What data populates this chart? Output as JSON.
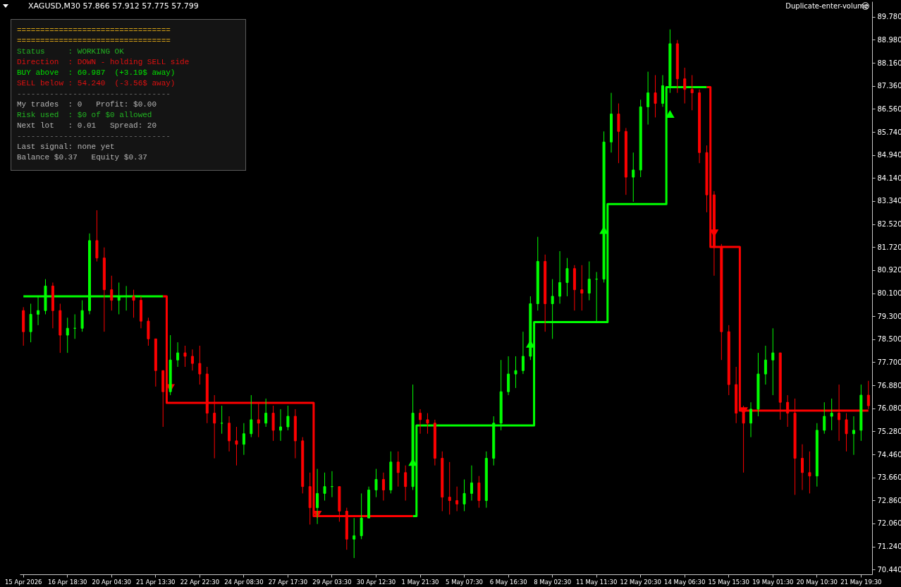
{
  "chart_data": {
    "type": "candlestick",
    "title": "XAGUSD,M30  57.866 57.912 57.775 57.799",
    "categories": [
      "15 Apr 2026",
      null,
      null,
      null,
      null,
      null,
      "16 Apr 18:30",
      null,
      null,
      null,
      null,
      null,
      "20 Apr 04:30",
      null,
      null,
      null,
      null,
      null,
      "21 Apr 13:30",
      null,
      null,
      null,
      null,
      null,
      "22 Apr 22:30",
      null,
      null,
      null,
      null,
      null,
      "24 Apr 08:30",
      null,
      null,
      null,
      null,
      null,
      "27 Apr 17:30",
      null,
      null,
      null,
      null,
      null,
      "29 Apr 03:30",
      null,
      null,
      null,
      null,
      null,
      "30 Apr 12:30",
      null,
      null,
      null,
      null,
      null,
      "1 May 21:30",
      null,
      null,
      null,
      null,
      null,
      "5 May 07:30",
      null,
      null,
      null,
      null,
      null,
      "6 May 16:30",
      null,
      null,
      null,
      null,
      null,
      "8 May 02:30",
      null,
      null,
      null,
      null,
      null,
      "11 May 11:30",
      null,
      null,
      null,
      null,
      null,
      "12 May 20:30",
      null,
      null,
      null,
      null,
      null,
      "14 May 06:30",
      null,
      null,
      null,
      null,
      null,
      "15 May 15:30",
      null,
      null,
      null,
      null,
      null,
      "19 May 01:30",
      null,
      null,
      null,
      null,
      null,
      "20 May 10:30",
      null,
      null,
      null,
      null,
      null,
      "21 May 19:30",
      null
    ],
    "ohlc": [
      [
        79.5,
        79.62,
        78.27,
        78.76
      ],
      [
        78.76,
        79.74,
        78.39,
        79.37
      ],
      [
        79.37,
        80.0,
        78.99,
        79.5
      ],
      [
        79.5,
        80.6,
        79.37,
        80.36
      ],
      [
        80.36,
        80.48,
        78.88,
        79.5
      ],
      [
        79.5,
        79.74,
        78.02,
        78.64
      ],
      [
        78.64,
        79.25,
        78.02,
        78.88
      ],
      [
        78.88,
        79.37,
        78.51,
        78.88
      ],
      [
        78.88,
        79.86,
        78.76,
        79.5
      ],
      [
        79.5,
        82.2,
        79.37,
        81.95
      ],
      [
        81.95,
        83.01,
        81.22,
        81.34
      ],
      [
        81.34,
        81.71,
        78.76,
        80.23
      ],
      [
        80.23,
        80.72,
        79.5,
        79.86
      ],
      [
        79.86,
        80.48,
        79.37,
        80.0
      ],
      [
        80.0,
        80.36,
        79.5,
        80.0
      ],
      [
        80.0,
        80.23,
        79.25,
        79.86
      ],
      [
        79.86,
        80.0,
        78.88,
        79.13
      ],
      [
        79.13,
        79.25,
        78.27,
        78.51
      ],
      [
        78.51,
        78.51,
        76.84,
        77.4
      ],
      [
        77.4,
        77.4,
        75.43,
        76.66
      ],
      [
        76.66,
        78.64,
        76.54,
        77.77
      ],
      [
        77.77,
        78.39,
        77.53,
        78.02
      ],
      [
        78.02,
        78.27,
        77.53,
        77.9
      ],
      [
        77.9,
        78.14,
        77.4,
        77.65
      ],
      [
        77.65,
        78.27,
        76.91,
        77.28
      ],
      [
        77.28,
        77.53,
        75.56,
        75.91
      ],
      [
        75.91,
        76.54,
        74.33,
        75.56
      ],
      [
        75.56,
        76.17,
        75.19,
        75.56
      ],
      [
        75.56,
        75.8,
        74.57,
        74.94
      ],
      [
        74.94,
        75.43,
        74.08,
        74.82
      ],
      [
        74.82,
        75.56,
        74.45,
        75.19
      ],
      [
        75.19,
        76.54,
        75.07,
        75.68
      ],
      [
        75.68,
        76.29,
        75.07,
        75.56
      ],
      [
        75.56,
        76.42,
        75.43,
        75.91
      ],
      [
        75.91,
        76.17,
        74.94,
        75.31
      ],
      [
        75.31,
        76.05,
        74.94,
        75.43
      ],
      [
        75.43,
        76.17,
        75.31,
        75.8
      ],
      [
        75.8,
        76.05,
        74.33,
        74.94
      ],
      [
        74.94,
        75.07,
        73.1,
        73.34
      ],
      [
        73.34,
        73.83,
        72.01,
        72.6
      ],
      [
        72.6,
        73.96,
        72.03,
        73.1
      ],
      [
        73.1,
        73.83,
        72.85,
        73.34
      ],
      [
        73.34,
        73.88,
        72.97,
        73.34
      ],
      [
        73.34,
        73.34,
        72.11,
        72.48
      ],
      [
        72.48,
        72.6,
        71.13,
        71.5
      ],
      [
        71.5,
        72.24,
        70.84,
        71.62
      ],
      [
        71.62,
        73.1,
        71.5,
        72.24
      ],
      [
        72.24,
        73.34,
        72.24,
        73.22
      ],
      [
        73.22,
        73.96,
        72.97,
        73.59
      ],
      [
        73.59,
        73.83,
        72.85,
        73.22
      ],
      [
        73.22,
        74.57,
        73.1,
        74.2
      ],
      [
        74.2,
        74.57,
        73.34,
        73.83
      ],
      [
        73.83,
        74.08,
        72.85,
        73.34
      ],
      [
        73.34,
        76.91,
        73.22,
        75.91
      ],
      [
        75.91,
        76.05,
        75.19,
        75.68
      ],
      [
        75.68,
        75.91,
        75.19,
        75.56
      ],
      [
        75.56,
        75.68,
        74.08,
        74.33
      ],
      [
        74.33,
        74.57,
        72.48,
        72.97
      ],
      [
        72.97,
        74.2,
        72.36,
        72.85
      ],
      [
        72.85,
        73.34,
        72.48,
        72.73
      ],
      [
        72.73,
        73.59,
        72.48,
        73.1
      ],
      [
        73.1,
        74.08,
        72.85,
        73.47
      ],
      [
        73.47,
        73.71,
        72.6,
        72.85
      ],
      [
        72.85,
        74.57,
        72.6,
        74.33
      ],
      [
        74.33,
        75.8,
        74.08,
        75.56
      ],
      [
        75.56,
        77.77,
        75.31,
        76.66
      ],
      [
        76.66,
        77.9,
        76.54,
        77.28
      ],
      [
        77.28,
        77.9,
        76.79,
        77.4
      ],
      [
        77.4,
        78.76,
        77.28,
        77.9
      ],
      [
        77.9,
        80.0,
        77.77,
        79.74
      ],
      [
        79.74,
        82.08,
        79.5,
        81.22
      ],
      [
        81.22,
        81.46,
        78.76,
        79.74
      ],
      [
        79.74,
        80.6,
        78.51,
        80.0
      ],
      [
        80.0,
        81.58,
        79.74,
        80.48
      ],
      [
        80.48,
        81.34,
        80.0,
        80.97
      ],
      [
        80.97,
        81.09,
        79.5,
        80.23
      ],
      [
        80.23,
        81.09,
        79.5,
        80.11
      ],
      [
        80.11,
        81.22,
        79.86,
        80.6
      ],
      [
        80.6,
        80.85,
        79.13,
        80.6
      ],
      [
        80.6,
        85.77,
        80.48,
        85.4
      ],
      [
        85.4,
        87.12,
        85.03,
        86.38
      ],
      [
        86.38,
        86.75,
        84.66,
        85.77
      ],
      [
        85.77,
        85.89,
        83.55,
        84.17
      ],
      [
        84.17,
        85.03,
        83.31,
        84.42
      ],
      [
        84.42,
        86.88,
        84.17,
        86.63
      ],
      [
        86.63,
        87.86,
        86.01,
        87.12
      ],
      [
        87.12,
        87.74,
        86.26,
        86.75
      ],
      [
        86.75,
        87.74,
        86.63,
        87.37
      ],
      [
        87.37,
        89.34,
        87.12,
        88.84
      ],
      [
        88.84,
        88.97,
        87.12,
        87.61
      ],
      [
        87.61,
        88.0,
        86.75,
        87.24
      ],
      [
        87.24,
        87.74,
        86.51,
        87.12
      ],
      [
        87.12,
        87.24,
        84.66,
        85.03
      ],
      [
        85.03,
        85.28,
        82.94,
        83.55
      ],
      [
        83.55,
        83.68,
        80.72,
        81.71
      ],
      [
        81.71,
        81.83,
        77.77,
        78.76
      ],
      [
        78.76,
        78.99,
        76.54,
        76.91
      ],
      [
        76.91,
        77.53,
        75.56,
        75.91
      ],
      [
        75.91,
        76.17,
        73.83,
        75.56
      ],
      [
        75.56,
        76.29,
        75.07,
        76.05
      ],
      [
        76.05,
        78.02,
        75.8,
        77.28
      ],
      [
        77.28,
        78.27,
        76.91,
        77.77
      ],
      [
        77.77,
        78.88,
        76.54,
        78.02
      ],
      [
        78.02,
        78.02,
        75.68,
        76.29
      ],
      [
        76.29,
        76.54,
        75.43,
        75.91
      ],
      [
        75.91,
        76.42,
        73.05,
        74.33
      ],
      [
        74.33,
        74.82,
        73.22,
        73.83
      ],
      [
        73.83,
        74.57,
        73.1,
        73.71
      ],
      [
        73.71,
        75.56,
        73.34,
        75.31
      ],
      [
        75.31,
        76.29,
        75.19,
        75.8
      ],
      [
        75.8,
        76.42,
        75.31,
        75.91
      ],
      [
        75.91,
        76.91,
        74.94,
        75.68
      ],
      [
        75.68,
        75.91,
        74.57,
        75.19
      ],
      [
        75.19,
        75.8,
        74.45,
        75.31
      ],
      [
        75.31,
        76.91,
        74.94,
        76.54
      ],
      [
        76.54,
        77.04,
        76.05,
        76.17
      ]
    ],
    "colors": [
      "#ff0000",
      "#00ff00",
      "#00ff00",
      "#00ff00",
      "#ff0000",
      "#ff0000",
      "#00ff00",
      "#00ff00",
      "#00ff00",
      "#00ff00",
      "#ff0000",
      "#ff0000",
      "#ff0000",
      "#00ff00",
      "#00ff00",
      "#ff0000",
      "#ff0000",
      "#ff0000",
      "#ff0000",
      "#ff0000",
      "#00ff00",
      "#00ff00",
      "#ff0000",
      "#ff0000",
      "#ff0000",
      "#ff0000",
      "#ff0000",
      "#00ff00",
      "#ff0000",
      "#ff0000",
      "#00ff00",
      "#00ff00",
      "#ff0000",
      "#00ff00",
      "#ff0000",
      "#00ff00",
      "#00ff00",
      "#ff0000",
      "#ff0000",
      "#ff0000",
      "#00ff00",
      "#00ff00",
      "#00ff00",
      "#ff0000",
      "#ff0000",
      "#00ff00",
      "#00ff00",
      "#00ff00",
      "#00ff00",
      "#ff0000",
      "#00ff00",
      "#ff0000",
      "#ff0000",
      "#00ff00",
      "#ff0000",
      "#ff0000",
      "#ff0000",
      "#ff0000",
      "#ff0000",
      "#ff0000",
      "#00ff00",
      "#00ff00",
      "#ff0000",
      "#00ff00",
      "#00ff00",
      "#00ff00",
      "#00ff00",
      "#00ff00",
      "#00ff00",
      "#00ff00",
      "#00ff00",
      "#ff0000",
      "#00ff00",
      "#00ff00",
      "#00ff00",
      "#ff0000",
      "#ff0000",
      "#00ff00",
      "#00ff00",
      "#00ff00",
      "#00ff00",
      "#ff0000",
      "#ff0000",
      "#00ff00",
      "#00ff00",
      "#00ff00",
      "#ff0000",
      "#00ff00",
      "#00ff00",
      "#ff0000",
      "#ff0000",
      "#ff0000",
      "#ff0000",
      "#ff0000",
      "#ff0000",
      "#ff0000",
      "#ff0000",
      "#ff0000",
      "#ff0000",
      "#00ff00",
      "#00ff00",
      "#00ff00",
      "#00ff00",
      "#ff0000",
      "#ff0000",
      "#ff0000",
      "#ff0000",
      "#ff0000",
      "#00ff00",
      "#00ff00",
      "#00ff00",
      "#ff0000",
      "#ff0000",
      "#00ff00",
      "#00ff00",
      "#ff0000"
    ],
    "series": [
      {
        "type": "step",
        "color": "#00ff00",
        "values": [
          80.0,
          80.0,
          80.0,
          80.0,
          80.0,
          80.0,
          80.0,
          80.0,
          80.0,
          80.0,
          80.0,
          80.0,
          80.0,
          80.0,
          80.0,
          80.0,
          80.0,
          80.0,
          80.0,
          80.0,
          null,
          null,
          null,
          null,
          null,
          null,
          null,
          null,
          null,
          null,
          null,
          null,
          null,
          null,
          null,
          null,
          null,
          null,
          null,
          null,
          null,
          null,
          null,
          null,
          null,
          null,
          null,
          null,
          null,
          null,
          null,
          null,
          null,
          72.31,
          75.48,
          75.48,
          75.48,
          75.48,
          75.48,
          75.48,
          75.48,
          75.48,
          75.48,
          75.48,
          75.48,
          75.48,
          75.48,
          75.48,
          75.48,
          75.48,
          79.1,
          79.1,
          79.1,
          79.1,
          79.1,
          79.1,
          79.1,
          79.1,
          79.1,
          79.1,
          83.23,
          83.23,
          83.23,
          83.23,
          83.23,
          83.23,
          83.23,
          83.23,
          87.32,
          87.32,
          87.32,
          87.32,
          87.32,
          87.32,
          null,
          null,
          null,
          null,
          null,
          null,
          null,
          null,
          null,
          null,
          null,
          null,
          null,
          null,
          null,
          null,
          null,
          null,
          null,
          null,
          null,
          null
        ]
      },
      {
        "type": "step",
        "color": "#ff0000",
        "values": [
          null,
          null,
          null,
          null,
          null,
          null,
          null,
          null,
          null,
          null,
          null,
          null,
          null,
          null,
          null,
          null,
          null,
          null,
          null,
          80.0,
          76.27,
          76.27,
          76.27,
          76.27,
          76.27,
          76.27,
          76.27,
          76.27,
          76.27,
          76.27,
          76.27,
          76.27,
          76.27,
          76.27,
          76.27,
          76.27,
          76.27,
          76.27,
          76.27,
          76.27,
          72.31,
          72.31,
          72.31,
          72.31,
          72.31,
          72.31,
          72.31,
          72.31,
          72.31,
          72.31,
          72.31,
          72.31,
          72.31,
          72.31,
          null,
          null,
          null,
          null,
          null,
          null,
          null,
          null,
          null,
          null,
          null,
          null,
          null,
          null,
          null,
          null,
          null,
          null,
          null,
          null,
          null,
          null,
          null,
          null,
          null,
          null,
          null,
          null,
          null,
          null,
          null,
          null,
          null,
          null,
          null,
          null,
          null,
          null,
          null,
          87.32,
          81.73,
          81.73,
          81.73,
          81.73,
          76.0,
          76.0,
          76.0,
          76.0,
          76.0,
          76.0,
          76.0,
          76.0,
          76.0,
          76.0,
          76.0,
          76.0,
          76.0,
          76.0,
          76.0,
          76.0,
          76.0,
          76.0
        ]
      },
      {
        "type": "scatter",
        "color": "#00ff00",
        "marker": "triangle",
        "values": [
          null,
          null,
          null,
          null,
          null,
          null,
          null,
          null,
          null,
          null,
          null,
          null,
          null,
          null,
          null,
          null,
          null,
          null,
          null,
          null,
          null,
          null,
          null,
          null,
          null,
          null,
          null,
          null,
          null,
          null,
          null,
          null,
          null,
          null,
          null,
          null,
          null,
          null,
          null,
          null,
          null,
          null,
          null,
          null,
          null,
          null,
          null,
          null,
          null,
          null,
          null,
          null,
          null,
          74.2,
          null,
          null,
          null,
          null,
          null,
          null,
          null,
          null,
          null,
          null,
          null,
          null,
          null,
          null,
          null,
          78.34,
          null,
          null,
          null,
          null,
          null,
          null,
          null,
          null,
          null,
          82.32,
          null,
          null,
          null,
          null,
          null,
          null,
          null,
          null,
          86.38,
          null,
          null,
          null,
          null,
          null,
          null,
          null,
          null,
          null,
          null,
          null,
          null,
          null,
          null,
          null,
          null,
          null,
          null,
          null,
          null,
          null,
          null,
          null,
          null,
          null,
          null,
          null
        ]
      },
      {
        "type": "scatter",
        "color": "#ff0000",
        "marker": "triangle-down",
        "values": [
          null,
          null,
          null,
          null,
          null,
          null,
          null,
          null,
          null,
          null,
          null,
          null,
          null,
          null,
          null,
          null,
          null,
          null,
          null,
          null,
          76.79,
          null,
          null,
          null,
          null,
          null,
          null,
          null,
          null,
          null,
          null,
          null,
          null,
          null,
          null,
          null,
          null,
          null,
          null,
          null,
          72.36,
          null,
          null,
          null,
          null,
          null,
          null,
          null,
          null,
          null,
          null,
          null,
          null,
          null,
          null,
          null,
          null,
          null,
          null,
          null,
          null,
          null,
          null,
          null,
          null,
          null,
          null,
          null,
          null,
          null,
          null,
          null,
          null,
          null,
          null,
          null,
          null,
          null,
          null,
          null,
          null,
          null,
          null,
          null,
          null,
          null,
          null,
          null,
          null,
          null,
          null,
          null,
          null,
          null,
          82.2,
          null,
          null,
          null,
          75.98,
          null,
          null,
          null,
          null,
          null,
          null,
          null,
          null,
          null,
          null,
          null,
          null,
          null,
          null,
          null,
          null,
          null
        ]
      }
    ],
    "ylim": [
      70.27,
      90.32
    ],
    "yticks": [
      {
        "value": 70.44,
        "label": "70.440"
      },
      {
        "value": 71.24,
        "label": "71.240"
      },
      {
        "value": 72.06,
        "label": "72.060"
      },
      {
        "value": 72.86,
        "label": "72.860"
      },
      {
        "value": 73.66,
        "label": "73.660"
      },
      {
        "value": 74.46,
        "label": "74.460"
      },
      {
        "value": 75.28,
        "label": "75.280"
      },
      {
        "value": 76.08,
        "label": "76.080"
      },
      {
        "value": 76.88,
        "label": "76.880"
      },
      {
        "value": 77.7,
        "label": "77.700"
      },
      {
        "value": 78.5,
        "label": "78.500"
      },
      {
        "value": 79.3,
        "label": "79.300"
      },
      {
        "value": 80.1,
        "label": "80.100"
      },
      {
        "value": 80.92,
        "label": "80.920"
      },
      {
        "value": 81.72,
        "label": "81.720"
      },
      {
        "value": 82.52,
        "label": "82.520"
      },
      {
        "value": 83.34,
        "label": "83.340"
      },
      {
        "value": 84.14,
        "label": "84.140"
      },
      {
        "value": 84.94,
        "label": "84.940"
      },
      {
        "value": 85.74,
        "label": "85.740"
      },
      {
        "value": 86.56,
        "label": "86.560"
      },
      {
        "value": 87.36,
        "label": "87.360"
      },
      {
        "value": 88.16,
        "label": "88.160"
      },
      {
        "value": 88.98,
        "label": "88.980"
      },
      {
        "value": 89.78,
        "label": "89.780"
      }
    ],
    "annotations": [
      "Duplicate-enter-volume",
      "=================================",
      "=================================",
      "Status     : WORKING OK",
      "Direction  : DOWN - holding SELL side",
      "BUY above  : 60.987  (+3.19$ away)",
      "SELL below : 54.240  (-3.56$ away)",
      "---------------------------------",
      "My trades  : 0   Profit: $0.00",
      "Risk used  : $0 of $0 allowed",
      "Next lot   : 0.01   Spread: 20",
      "---------------------------------",
      "Last signal: none yet",
      "Balance $0.37   Equity $0.37"
    ]
  }
}
